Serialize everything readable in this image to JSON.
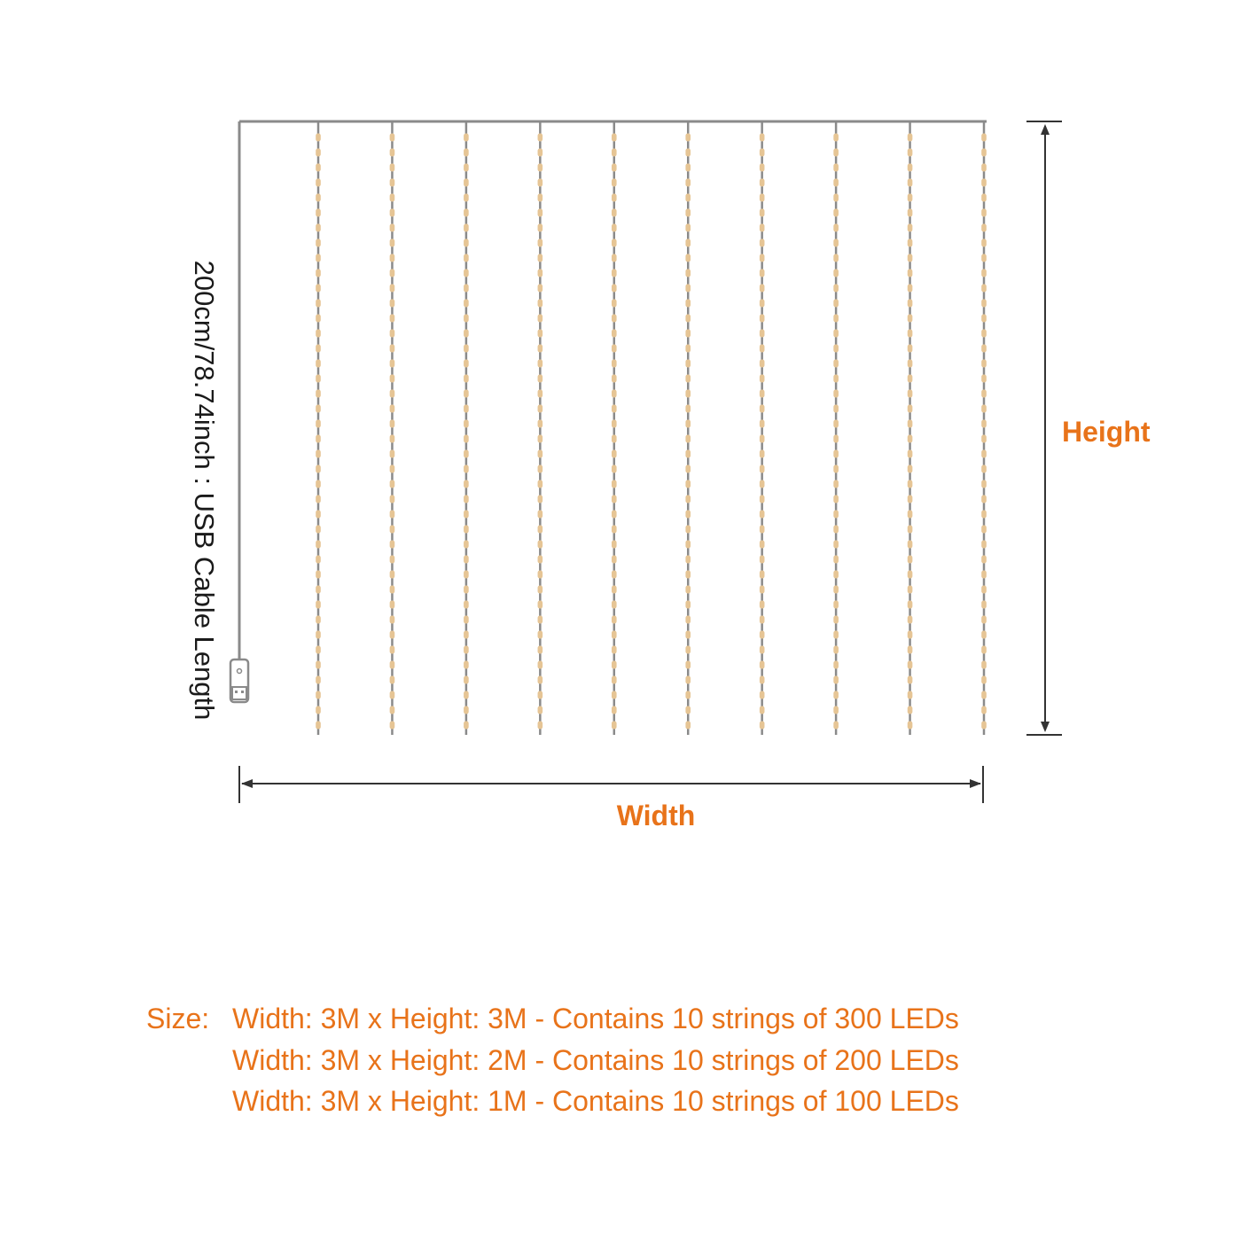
{
  "colors": {
    "wire": "#8a8a8a",
    "led": "#e6c595",
    "accent": "#e8731a",
    "dimension": "#333333"
  },
  "diagram": {
    "strings_count": 10,
    "cable_label": "200cm/78.74inch : USB Cable Length",
    "height_label": "Height",
    "width_label": "Width",
    "usb_icon": "usb-plug-icon"
  },
  "specs": {
    "label": "Size:",
    "lines": [
      "Width: 3M x Height: 3M - Contains 10 strings of 300 LEDs",
      "Width: 3M x Height: 2M - Contains 10 strings of 200 LEDs",
      "Width: 3M x Height: 1M - Contains 10 strings of 100 LEDs"
    ]
  }
}
